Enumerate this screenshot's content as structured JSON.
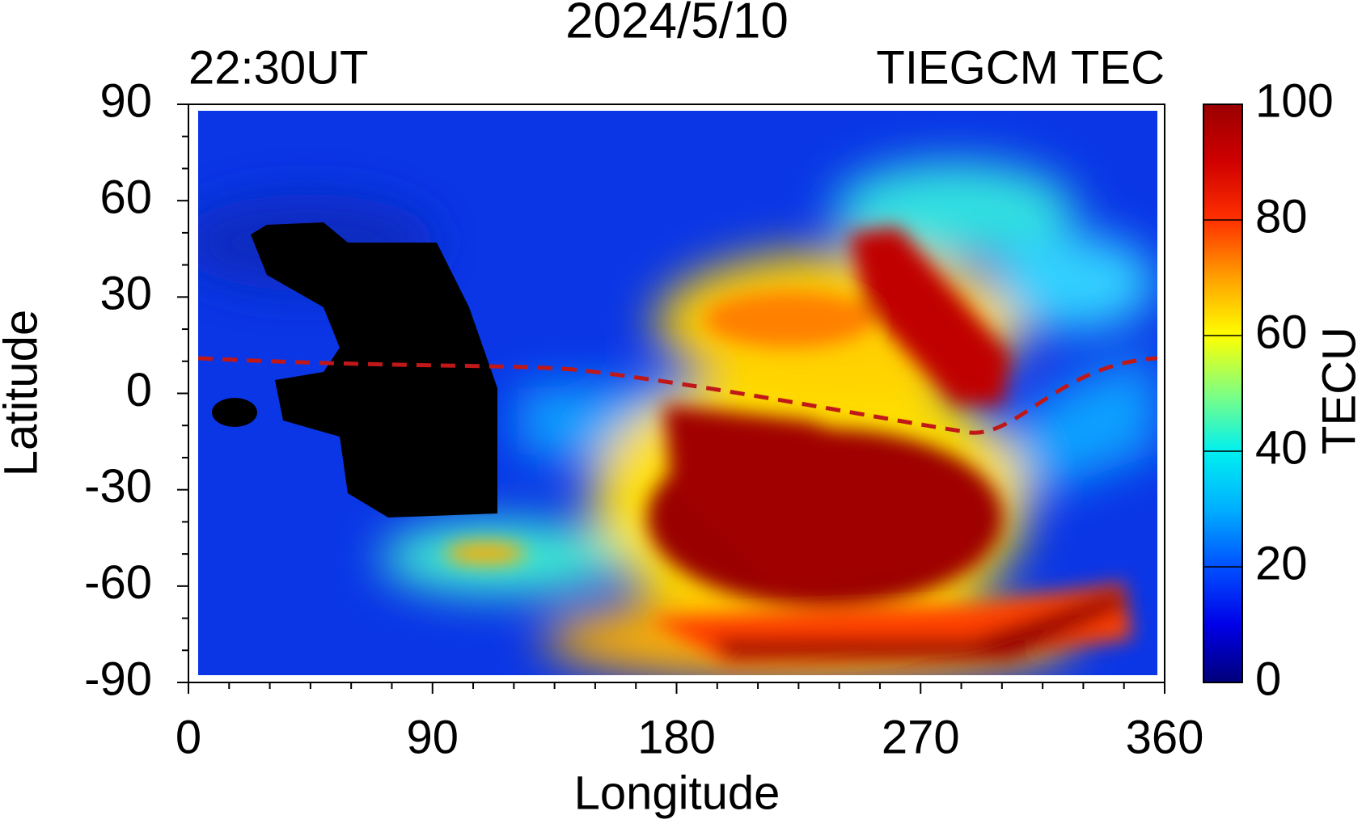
{
  "chart_data": {
    "type": "map",
    "title": "2024/5/10",
    "subtitle_left": "22:30UT",
    "subtitle_right": "TIEGCM TEC",
    "x_label": "Longitude",
    "y_label": "Latitude",
    "xlim": [
      0,
      360
    ],
    "xticks": [
      0,
      90,
      180,
      270,
      360
    ],
    "ylim": [
      -90,
      90
    ],
    "yticks": [
      90,
      60,
      30,
      0,
      -30,
      -60,
      -90
    ],
    "colorbar": {
      "label": "TECU",
      "lim": [
        0,
        100
      ],
      "ticks": [
        100,
        80,
        60,
        40,
        20,
        0
      ],
      "colormap": [
        "#00007a",
        "#0000e8",
        "#0050ff",
        "#00b0ff",
        "#00f0f0",
        "#80ff80",
        "#ffff00",
        "#ffa000",
        "#ff3000",
        "#d00000",
        "#9a0000"
      ]
    }
  }
}
